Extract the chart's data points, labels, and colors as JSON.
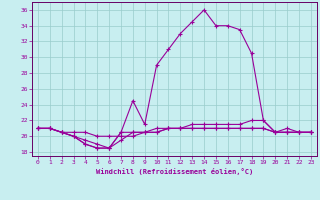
{
  "xlabel": "Windchill (Refroidissement éolien,°C)",
  "background_color": "#c8eef0",
  "grid_color": "#99cccc",
  "line_color": "#990099",
  "spine_color": "#660066",
  "xlim": [
    -0.5,
    23.5
  ],
  "ylim": [
    17.5,
    37.0
  ],
  "xticks": [
    0,
    1,
    2,
    3,
    4,
    5,
    6,
    7,
    8,
    9,
    10,
    11,
    12,
    13,
    14,
    15,
    16,
    17,
    18,
    19,
    20,
    21,
    22,
    23
  ],
  "yticks": [
    18,
    20,
    22,
    24,
    26,
    28,
    30,
    32,
    34,
    36
  ],
  "hours": [
    0,
    1,
    2,
    3,
    4,
    5,
    6,
    7,
    8,
    9,
    10,
    11,
    12,
    13,
    14,
    15,
    16,
    17,
    18,
    19,
    20,
    21,
    22,
    23
  ],
  "line1": [
    21.0,
    21.0,
    20.5,
    20.0,
    19.0,
    18.5,
    18.5,
    20.5,
    24.5,
    21.5,
    29.0,
    31.0,
    33.0,
    34.5,
    36.0,
    34.0,
    34.0,
    33.5,
    30.5,
    22.0,
    20.5,
    21.0,
    20.5,
    20.5
  ],
  "line2": [
    21.0,
    21.0,
    20.5,
    20.0,
    19.0,
    18.5,
    18.5,
    20.5,
    20.5,
    20.5,
    21.0,
    21.0,
    21.0,
    21.5,
    21.5,
    21.5,
    21.5,
    21.5,
    22.0,
    22.0,
    20.5,
    20.5,
    20.5,
    20.5
  ],
  "line3": [
    21.0,
    21.0,
    20.5,
    20.0,
    19.5,
    19.0,
    18.5,
    19.5,
    20.5,
    20.5,
    20.5,
    21.0,
    21.0,
    21.0,
    21.0,
    21.0,
    21.0,
    21.0,
    21.0,
    21.0,
    20.5,
    20.5,
    20.5,
    20.5
  ],
  "line4": [
    21.0,
    21.0,
    20.5,
    20.5,
    20.5,
    20.0,
    20.0,
    20.0,
    20.0,
    20.5,
    20.5,
    21.0,
    21.0,
    21.0,
    21.0,
    21.0,
    21.0,
    21.0,
    21.0,
    21.0,
    20.5,
    20.5,
    20.5,
    20.5
  ]
}
